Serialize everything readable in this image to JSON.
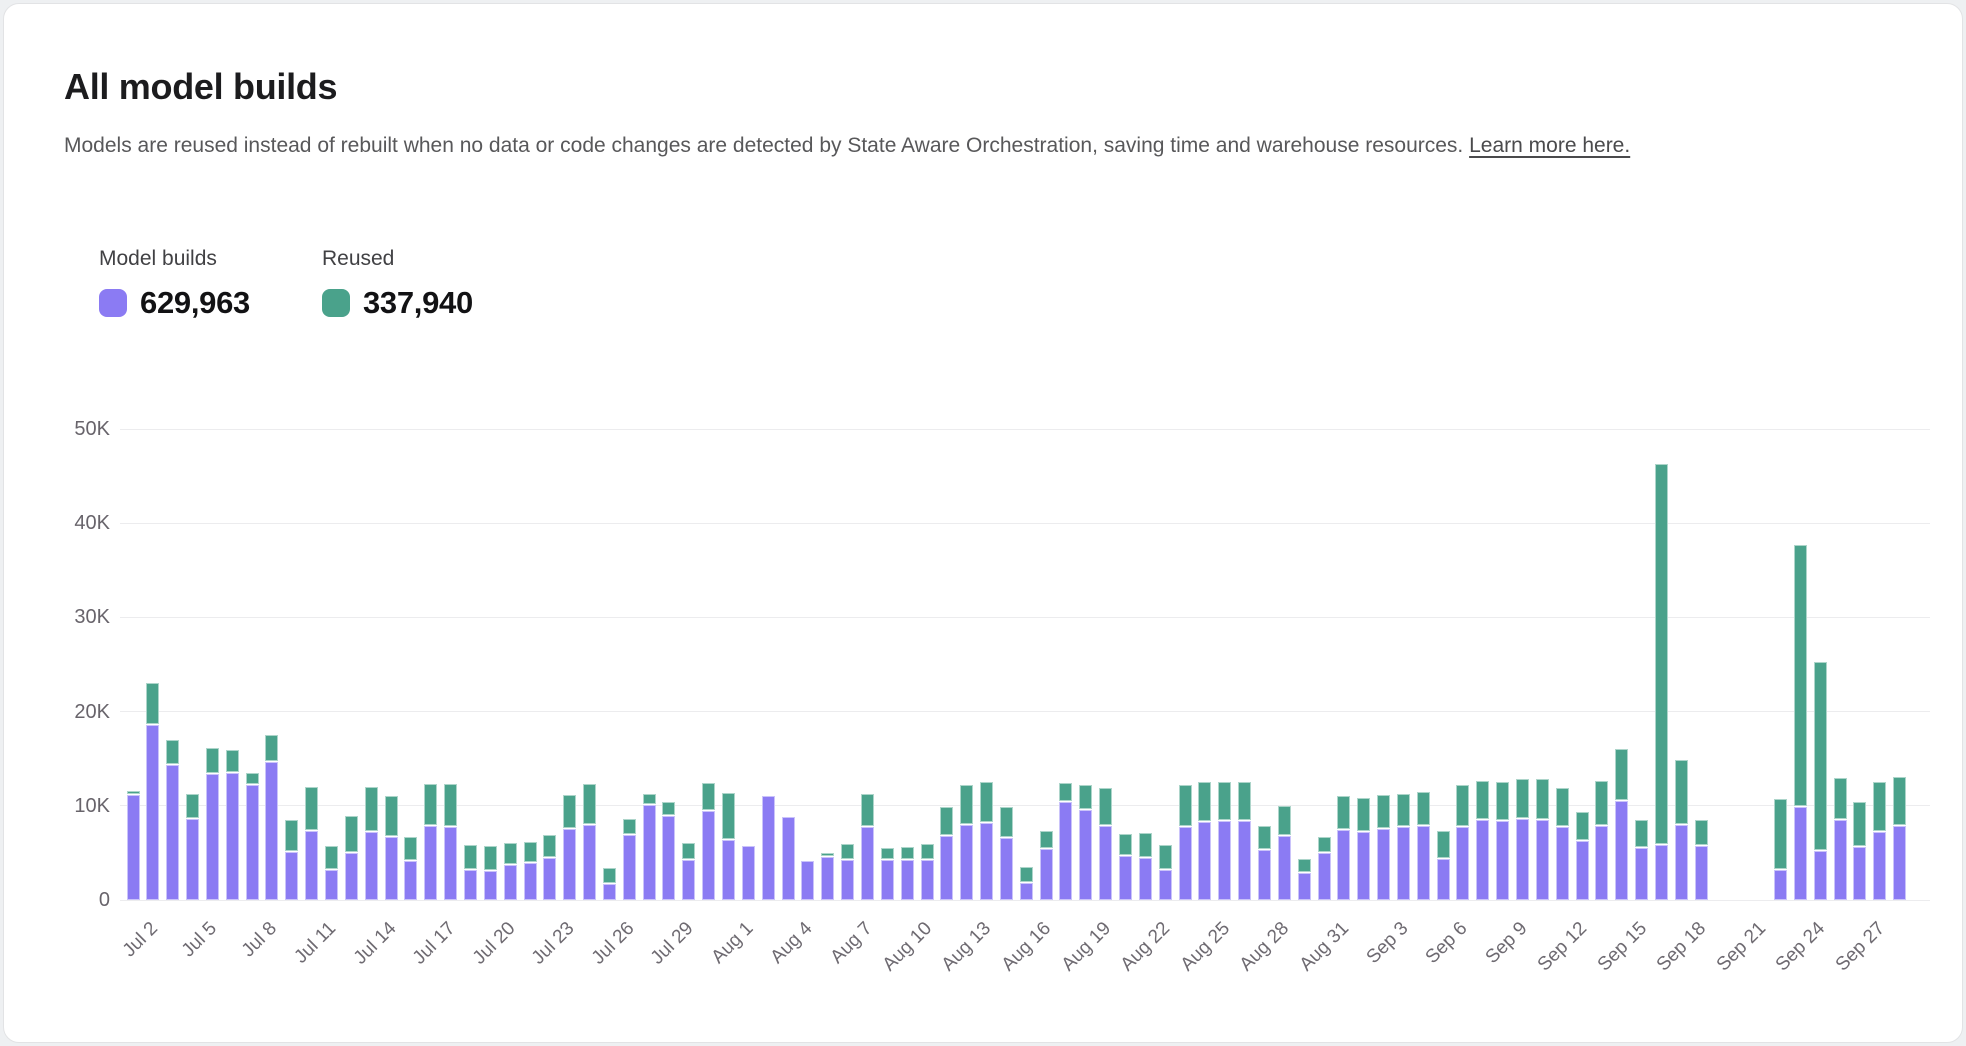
{
  "header": {
    "title": "All model builds",
    "subtitle_text": "Models are reused instead of rebuilt when no data or code changes are detected by State Aware Orchestration, saving time and warehouse resources. ",
    "subtitle_link": "Learn more here."
  },
  "legend": {
    "items": [
      {
        "label": "Model builds",
        "value": "629,963",
        "color": "#8B7BF3"
      },
      {
        "label": "Reused",
        "value": "337,940",
        "color": "#4AA28B"
      }
    ]
  },
  "chart_data": {
    "type": "bar",
    "stacked": true,
    "title": "All model builds",
    "xlabel": "",
    "ylabel": "",
    "ylim": [
      0,
      50000
    ],
    "grid": "horizontal",
    "legend_position": "top-left",
    "x_tick_every": 3,
    "yticks": [
      {
        "label": "0",
        "value": 0
      },
      {
        "label": "10K",
        "value": 10000
      },
      {
        "label": "20K",
        "value": 20000
      },
      {
        "label": "30K",
        "value": 30000
      },
      {
        "label": "40K",
        "value": 40000
      },
      {
        "label": "50K",
        "value": 50000
      }
    ],
    "categories": [
      "Jul 2",
      "Jul 3",
      "Jul 4",
      "Jul 5",
      "Jul 6",
      "Jul 7",
      "Jul 8",
      "Jul 9",
      "Jul 10",
      "Jul 11",
      "Jul 12",
      "Jul 13",
      "Jul 14",
      "Jul 15",
      "Jul 16",
      "Jul 17",
      "Jul 18",
      "Jul 19",
      "Jul 20",
      "Jul 21",
      "Jul 22",
      "Jul 23",
      "Jul 24",
      "Jul 25",
      "Jul 26",
      "Jul 27",
      "Jul 28",
      "Jul 29",
      "Jul 30",
      "Jul 31",
      "Aug 1",
      "Aug 2",
      "Aug 3",
      "Aug 4",
      "Aug 5",
      "Aug 6",
      "Aug 7",
      "Aug 8",
      "Aug 9",
      "Aug 10",
      "Aug 11",
      "Aug 12",
      "Aug 13",
      "Aug 14",
      "Aug 15",
      "Aug 16",
      "Aug 17",
      "Aug 18",
      "Aug 19",
      "Aug 20",
      "Aug 21",
      "Aug 22",
      "Aug 23",
      "Aug 24",
      "Aug 25",
      "Aug 26",
      "Aug 27",
      "Aug 28",
      "Aug 29",
      "Aug 30",
      "Aug 31",
      "Sep 1",
      "Sep 2",
      "Sep 3",
      "Sep 4",
      "Sep 5",
      "Sep 6",
      "Sep 7",
      "Sep 8",
      "Sep 9",
      "Sep 10",
      "Sep 11",
      "Sep 12",
      "Sep 13",
      "Sep 14",
      "Sep 15",
      "Sep 16",
      "Sep 17",
      "Sep 18",
      "Sep 19",
      "Sep 20",
      "Sep 21",
      "Sep 22",
      "Sep 23",
      "Sep 24",
      "Sep 25",
      "Sep 26",
      "Sep 27",
      "Sep 28",
      "Sep 29"
    ],
    "series": [
      {
        "name": "Model builds",
        "color": "#8B7BF3",
        "values": [
          11200,
          18600,
          14300,
          8600,
          13400,
          13500,
          12200,
          14700,
          5100,
          7300,
          3200,
          5000,
          7200,
          6700,
          4100,
          7900,
          7800,
          3200,
          3100,
          3700,
          3900,
          4500,
          7500,
          8000,
          1700,
          6900,
          10100,
          8900,
          4300,
          9500,
          6400,
          5700,
          11000,
          8800,
          4100,
          4600,
          4200,
          7800,
          4200,
          4200,
          4200,
          6800,
          8000,
          8200,
          6600,
          1800,
          5400,
          10400,
          9600,
          7900,
          4700,
          4500,
          3200,
          7800,
          8300,
          8400,
          8400,
          5300,
          6800,
          2900,
          5000,
          7400,
          7200,
          7500,
          7800,
          7900,
          4400,
          7800,
          8500,
          8400,
          8600,
          8500,
          7800,
          6300,
          7900,
          10500,
          5500,
          5800,
          8000,
          5700,
          0,
          0,
          0,
          3200,
          9900,
          5200,
          8500,
          5600,
          7200,
          7900
        ]
      },
      {
        "name": "Reused",
        "color": "#4AA28B",
        "values": [
          300,
          4300,
          2600,
          2600,
          2600,
          2300,
          1200,
          2700,
          3300,
          4600,
          2400,
          3800,
          4700,
          4200,
          2500,
          4300,
          4400,
          2500,
          2500,
          2200,
          2100,
          2300,
          3500,
          4200,
          1600,
          1600,
          1000,
          1400,
          1600,
          2800,
          4900,
          0,
          0,
          0,
          0,
          300,
          1600,
          3400,
          1200,
          1300,
          1600,
          3000,
          4100,
          4200,
          3200,
          1600,
          1800,
          1900,
          2500,
          3900,
          2200,
          2500,
          2500,
          4300,
          4100,
          4000,
          4000,
          2400,
          3100,
          1300,
          1600,
          3500,
          3500,
          3500,
          3400,
          3500,
          2800,
          4300,
          4000,
          4000,
          4100,
          4200,
          4000,
          2900,
          4600,
          5400,
          2900,
          40400,
          6800,
          2700,
          0,
          0,
          0,
          7400,
          27700,
          20000,
          4400,
          4700,
          5200,
          5100
        ]
      }
    ]
  }
}
